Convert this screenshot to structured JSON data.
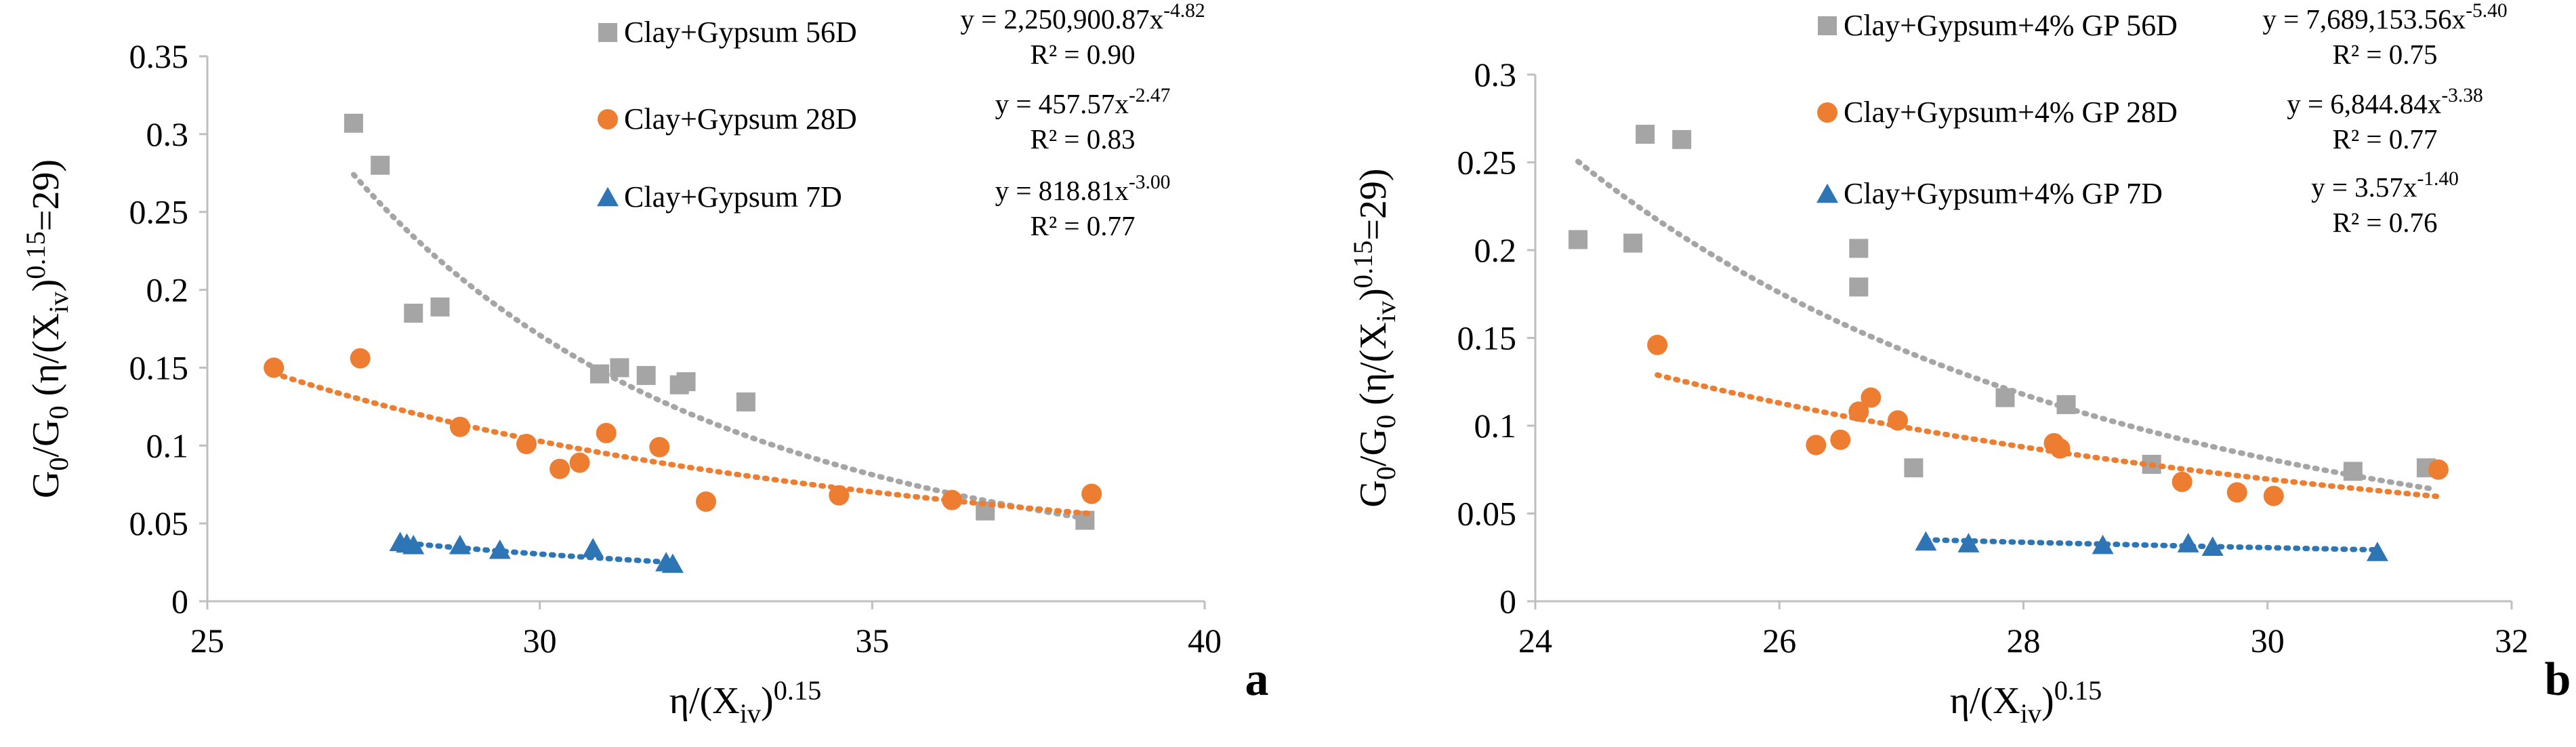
{
  "chart_data": [
    {
      "type": "scatter",
      "panel_label": "a",
      "xlabel": "η/(Xiv)^0.15",
      "ylabel": "G0/G0 (η/(Xiv)^0.15=29)",
      "xlim": [
        25,
        40
      ],
      "ylim": [
        0,
        0.35
      ],
      "xticks": [
        25,
        30,
        35,
        40
      ],
      "yticks": [
        0,
        0.05,
        0.1,
        0.15,
        0.2,
        0.25,
        0.3,
        0.35
      ],
      "xtick_labels": [
        "25",
        "30",
        "35",
        "40"
      ],
      "ytick_labels": [
        "0",
        "0.05",
        "0.1",
        "0.15",
        "0.2",
        "0.25",
        "0.3",
        "0.35"
      ],
      "grid": false,
      "legend_position": "top",
      "series": [
        {
          "name": "Clay+Gypsum 56D",
          "marker": "square",
          "color": "#a5a5a5",
          "trend": {
            "a": 2250900.87,
            "b": -4.82,
            "x_range": [
              27.2,
              38.2
            ]
          },
          "equation": {
            "base": "y = 2,250,900.87x",
            "exp": "-4.82",
            "r2": "R² = 0.90"
          },
          "points": [
            [
              27.2,
              0.307
            ],
            [
              27.6,
              0.28
            ],
            [
              28.1,
              0.185
            ],
            [
              28.5,
              0.189
            ],
            [
              30.9,
              0.146
            ],
            [
              31.2,
              0.15
            ],
            [
              31.6,
              0.145
            ],
            [
              32.1,
              0.139
            ],
            [
              32.2,
              0.141
            ],
            [
              33.1,
              0.128
            ],
            [
              36.7,
              0.058
            ],
            [
              38.2,
              0.052
            ]
          ]
        },
        {
          "name": "Clay+Gypsum 28D",
          "marker": "circle",
          "color": "#ed7d31",
          "trend": {
            "a": 457.57,
            "b": -2.47,
            "x_range": [
              26.0,
              38.3
            ]
          },
          "equation": {
            "base": "y = 457.57x",
            "exp": "-2.47",
            "r2": "R² = 0.83"
          },
          "points": [
            [
              26.0,
              0.15
            ],
            [
              27.3,
              0.156
            ],
            [
              28.8,
              0.112
            ],
            [
              29.8,
              0.101
            ],
            [
              30.3,
              0.085
            ],
            [
              30.6,
              0.089
            ],
            [
              31.0,
              0.108
            ],
            [
              31.8,
              0.099
            ],
            [
              32.5,
              0.064
            ],
            [
              34.5,
              0.068
            ],
            [
              36.2,
              0.065
            ],
            [
              38.3,
              0.069
            ]
          ]
        },
        {
          "name": "Clay+Gypsum 7D",
          "marker": "triangle",
          "color": "#2e75b6",
          "trend": {
            "a": 818.81,
            "b": -3.0,
            "x_range": [
              27.9,
              31.9
            ]
          },
          "equation": {
            "base": "y = 818.81x",
            "exp": "-3.00",
            "r2": "R² = 0.77"
          },
          "points": [
            [
              27.9,
              0.038
            ],
            [
              28.0,
              0.037
            ],
            [
              28.1,
              0.036
            ],
            [
              28.8,
              0.036
            ],
            [
              29.4,
              0.033
            ],
            [
              30.8,
              0.034
            ],
            [
              31.9,
              0.025
            ],
            [
              32.0,
              0.024
            ]
          ]
        }
      ]
    },
    {
      "type": "scatter",
      "panel_label": "b",
      "xlabel": "η/(Xiv)^0.15",
      "ylabel": "G0/G0 (η/(Xiv)^0.15=29)",
      "xlim": [
        24,
        32
      ],
      "ylim": [
        0,
        0.3
      ],
      "xticks": [
        24,
        26,
        28,
        30,
        32
      ],
      "yticks": [
        0,
        0.05,
        0.1,
        0.15,
        0.2,
        0.25,
        0.3
      ],
      "xtick_labels": [
        "24",
        "26",
        "28",
        "30",
        "32"
      ],
      "ytick_labels": [
        "0",
        "0.05",
        "0.1",
        "0.15",
        "0.2",
        "0.25",
        "0.3"
      ],
      "grid": false,
      "legend_position": "top",
      "series": [
        {
          "name": "Clay+Gypsum+4% GP 56D",
          "marker": "square",
          "color": "#a5a5a5",
          "trend": {
            "a": 7689153.56,
            "b": -5.4,
            "x_range": [
              24.35,
              31.35
            ]
          },
          "equation": {
            "base": "y = 7,689,153.56x",
            "exp": "-5.40",
            "r2": "R² = 0.75"
          },
          "points": [
            [
              24.35,
              0.206
            ],
            [
              24.8,
              0.204
            ],
            [
              24.9,
              0.266
            ],
            [
              25.2,
              0.263
            ],
            [
              26.65,
              0.201
            ],
            [
              26.65,
              0.179
            ],
            [
              27.1,
              0.076
            ],
            [
              27.85,
              0.116
            ],
            [
              28.35,
              0.112
            ],
            [
              29.05,
              0.078
            ],
            [
              30.7,
              0.074
            ],
            [
              31.3,
              0.076
            ]
          ]
        },
        {
          "name": "Clay+Gypsum+4% GP 28D",
          "marker": "circle",
          "color": "#ed7d31",
          "trend": {
            "a": 6844.84,
            "b": -3.38,
            "x_range": [
              25.0,
              31.4
            ]
          },
          "equation": {
            "base": "y = 6,844.84x",
            "exp": "-3.38",
            "r2": "R² = 0.77"
          },
          "points": [
            [
              25.0,
              0.146
            ],
            [
              26.3,
              0.089
            ],
            [
              26.5,
              0.092
            ],
            [
              26.65,
              0.108
            ],
            [
              26.75,
              0.116
            ],
            [
              26.97,
              0.103
            ],
            [
              28.25,
              0.09
            ],
            [
              28.3,
              0.087
            ],
            [
              29.3,
              0.068
            ],
            [
              29.75,
              0.062
            ],
            [
              30.05,
              0.06
            ],
            [
              31.4,
              0.075
            ]
          ]
        },
        {
          "name": "Clay+Gypsum+4% GP 7D",
          "marker": "triangle",
          "color": "#2e75b6",
          "trend": {
            "a": 3.57,
            "b": -1.4,
            "x_range": [
              27.2,
              30.9
            ]
          },
          "equation": {
            "base": "y = 3.57x",
            "exp": "-1.40",
            "r2": "R² = 0.76"
          },
          "points": [
            [
              27.2,
              0.034
            ],
            [
              27.55,
              0.033
            ],
            [
              28.65,
              0.032
            ],
            [
              29.35,
              0.033
            ],
            [
              29.55,
              0.031
            ],
            [
              30.9,
              0.028
            ]
          ]
        }
      ]
    }
  ]
}
